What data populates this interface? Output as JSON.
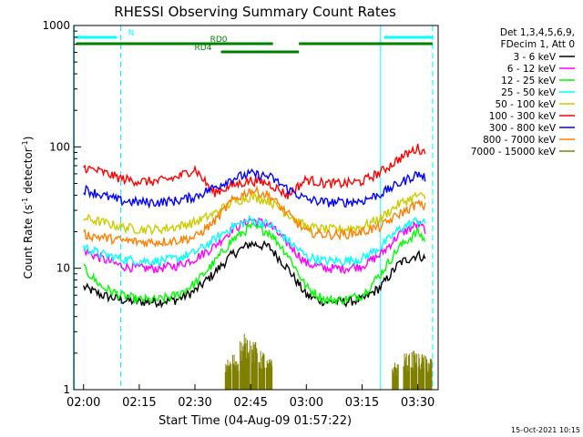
{
  "chart_data": {
    "type": "line",
    "title": "RHESSI Observing Summary Count Rates",
    "xlabel": "Start Time (04-Aug-09 01:57:22)",
    "ylabel_main": "Count Rate (s",
    "ylabel_sup1": "-1",
    "ylabel_mid": " detector",
    "ylabel_sup2": "-1",
    "ylabel_end": ")",
    "yscale": "log",
    "ylim": [
      1,
      1000
    ],
    "xlim": [
      "01:57:22",
      "03:35:30"
    ],
    "x_ticks": [
      "02:00",
      "02:15",
      "02:30",
      "02:45",
      "03:00",
      "03:15",
      "03:30"
    ],
    "y_ticks": [
      "1",
      "10",
      "100",
      "1000"
    ],
    "legend": {
      "position": "top-right",
      "header": [
        "Det 1,3,4,5,6,9,",
        "FDecim 1, Att 0"
      ],
      "entries": [
        {
          "label": "3 - 6 keV",
          "color": "#000000"
        },
        {
          "label": "6 - 12 keV",
          "color": "#ff00ff"
        },
        {
          "label": "12 - 25 keV",
          "color": "#00ff00"
        },
        {
          "label": "25 - 50 keV",
          "color": "#00ffff"
        },
        {
          "label": "50 - 100 keV",
          "color": "#cccc00"
        },
        {
          "label": "100 - 300 keV",
          "color": "#ff0000"
        },
        {
          "label": "300 - 800 keV",
          "color": "#0000ff"
        },
        {
          "label": "800 - 7000 keV",
          "color": "#ff8000"
        },
        {
          "label": "7000 - 15000 keV",
          "color": "#808000"
        }
      ]
    },
    "flags": [
      {
        "name": "N",
        "color": "#00ffff",
        "segments": [
          [
            "01:58",
            "02:09"
          ],
          [
            "03:21",
            "03:34"
          ]
        ]
      },
      {
        "name": "RD0",
        "color": "#008000",
        "segments": [
          [
            "01:58",
            "02:51"
          ],
          [
            "02:58",
            "03:34"
          ]
        ]
      },
      {
        "name": "RD4",
        "color": "#008000",
        "segments": [
          [
            "02:37",
            "02:58"
          ]
        ]
      }
    ],
    "night_boundaries": [
      {
        "time": "01:57:30",
        "style": "solid",
        "color": "#00ffff"
      },
      {
        "time": "02:10",
        "style": "dashed",
        "color": "#00ffff"
      },
      {
        "time": "03:20",
        "style": "solid",
        "color": "#00ffff"
      },
      {
        "time": "03:34",
        "style": "dashed",
        "color": "#00ffff"
      }
    ],
    "series": [
      {
        "name": "3 - 6 keV",
        "color": "#000000",
        "x": [
          "02:00",
          "02:05",
          "02:10",
          "02:15",
          "02:20",
          "02:25",
          "02:30",
          "02:35",
          "02:40",
          "02:45",
          "02:50",
          "02:55",
          "03:00",
          "03:05",
          "03:10",
          "03:15",
          "03:20",
          "03:25",
          "03:30",
          "03:32"
        ],
        "values": [
          7,
          6,
          5.5,
          5.3,
          5.3,
          5.5,
          6.5,
          9,
          13,
          16,
          15,
          10,
          6,
          5.3,
          5.3,
          5.5,
          7,
          11,
          13,
          12
        ]
      },
      {
        "name": "6 - 12 keV",
        "color": "#ff00ff",
        "x": [
          "02:00",
          "02:05",
          "02:10",
          "02:15",
          "02:20",
          "02:25",
          "02:30",
          "02:35",
          "02:40",
          "02:45",
          "02:50",
          "02:55",
          "03:00",
          "03:05",
          "03:10",
          "03:15",
          "03:20",
          "03:25",
          "03:30",
          "03:32"
        ],
        "values": [
          14,
          12,
          10.5,
          10,
          10,
          10.5,
          12,
          15,
          21,
          25,
          23,
          16,
          11,
          10,
          10,
          10.5,
          13,
          19,
          23,
          21
        ]
      },
      {
        "name": "12 - 25 keV",
        "color": "#00ff00",
        "x": [
          "02:00",
          "02:05",
          "02:10",
          "02:15",
          "02:20",
          "02:25",
          "02:30",
          "02:35",
          "02:40",
          "02:45",
          "02:50",
          "02:55",
          "03:00",
          "03:05",
          "03:10",
          "03:15",
          "03:20",
          "03:25",
          "03:30",
          "03:32"
        ],
        "values": [
          10,
          7,
          6,
          5.5,
          5.5,
          6,
          7.5,
          11,
          17,
          22,
          20,
          13,
          7,
          5.5,
          5.5,
          6,
          9,
          15,
          20,
          17
        ]
      },
      {
        "name": "25 - 50 keV",
        "color": "#00ffff",
        "x": [
          "02:00",
          "02:05",
          "02:10",
          "02:15",
          "02:20",
          "02:25",
          "02:30",
          "02:35",
          "02:40",
          "02:45",
          "02:50",
          "02:55",
          "03:00",
          "03:05",
          "03:10",
          "03:15",
          "03:20",
          "03:25",
          "03:30",
          "03:32"
        ],
        "values": [
          15,
          13,
          12,
          11.5,
          11.5,
          12,
          13.5,
          17,
          22,
          25,
          23,
          17,
          12.5,
          11.5,
          11.5,
          12,
          15,
          21,
          25,
          23
        ]
      },
      {
        "name": "50 - 100 keV",
        "color": "#cccc00",
        "x": [
          "02:00",
          "02:05",
          "02:10",
          "02:15",
          "02:20",
          "02:25",
          "02:30",
          "02:35",
          "02:40",
          "02:45",
          "02:50",
          "02:55",
          "03:00",
          "03:05",
          "03:10",
          "03:15",
          "03:20",
          "03:25",
          "03:30",
          "03:32"
        ],
        "values": [
          26,
          24,
          22,
          21,
          21,
          22,
          24,
          28,
          35,
          39,
          36,
          28,
          22,
          21,
          21,
          22,
          26,
          34,
          40,
          38
        ]
      },
      {
        "name": "100 - 300 keV",
        "color": "#ff0000",
        "x": [
          "02:00",
          "02:05",
          "02:10",
          "02:15",
          "02:20",
          "02:25",
          "02:30",
          "02:35",
          "02:40",
          "02:45",
          "02:50",
          "02:55",
          "03:00",
          "03:05",
          "03:10",
          "03:15",
          "03:20",
          "03:25",
          "03:30",
          "03:32"
        ],
        "values": [
          68,
          62,
          55,
          52,
          52,
          56,
          66,
          42,
          48,
          53,
          50,
          40,
          54,
          50,
          50,
          52,
          62,
          80,
          98,
          90
        ]
      },
      {
        "name": "300 - 800 keV",
        "color": "#0000ff",
        "x": [
          "02:00",
          "02:05",
          "02:10",
          "02:15",
          "02:20",
          "02:25",
          "02:30",
          "02:35",
          "02:40",
          "02:45",
          "02:50",
          "02:55",
          "03:00",
          "03:05",
          "03:10",
          "03:15",
          "03:20",
          "03:25",
          "03:30",
          "03:32"
        ],
        "values": [
          45,
          40,
          36,
          35,
          35,
          36,
          39,
          46,
          55,
          60,
          57,
          45,
          37,
          35,
          35,
          36,
          41,
          50,
          60,
          56
        ]
      },
      {
        "name": "800 - 7000 keV",
        "color": "#ff8000",
        "x": [
          "02:00",
          "02:05",
          "02:10",
          "02:15",
          "02:20",
          "02:25",
          "02:30",
          "02:35",
          "02:40",
          "02:45",
          "02:50",
          "02:55",
          "03:00",
          "03:05",
          "03:10",
          "03:15",
          "03:20",
          "03:25",
          "03:30",
          "03:32"
        ],
        "values": [
          19,
          18,
          17,
          16.5,
          16.5,
          17,
          18,
          24,
          36,
          44,
          40,
          28,
          20,
          19,
          19,
          20,
          22,
          28,
          34,
          32
        ]
      },
      {
        "name": "7000 - 15000 keV",
        "color": "#808000",
        "x": [
          "02:39",
          "02:41",
          "02:43",
          "02:44",
          "02:46",
          "02:48",
          "02:50",
          "03:24",
          "03:27",
          "03:29",
          "03:31",
          "03:33"
        ],
        "values": [
          1.8,
          2.0,
          2.6,
          2.9,
          2.5,
          2.1,
          1.8,
          1.7,
          2.0,
          2.1,
          2.0,
          1.9
        ]
      }
    ]
  },
  "footer": {
    "timestamp": "15-Oct-2021 10:15"
  }
}
